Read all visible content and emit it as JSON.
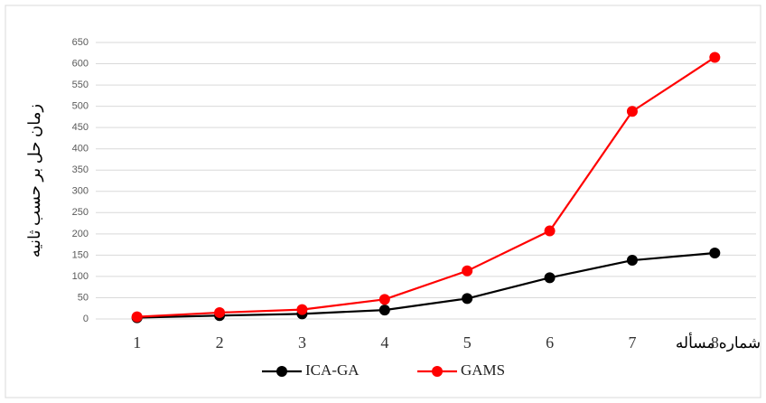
{
  "chart_data": {
    "type": "line",
    "x_label": "شماره مسأله",
    "y_label": "زمان حل بر حسب ثانیه",
    "categories": [
      "1",
      "2",
      "3",
      "4",
      "5",
      "6",
      "7",
      "8"
    ],
    "series": [
      {
        "name": "ICA-GA",
        "color": "#000000",
        "values": [
          3,
          8,
          12,
          21,
          48,
          97,
          138,
          155
        ]
      },
      {
        "name": "GAMS",
        "color": "#ff0000",
        "values": [
          5,
          15,
          22,
          46,
          113,
          207,
          488,
          615
        ]
      }
    ],
    "ylim": [
      0,
      650
    ],
    "yticks": [
      0,
      50,
      100,
      150,
      200,
      250,
      300,
      350,
      400,
      450,
      500,
      550,
      600,
      650
    ],
    "grid": true
  }
}
